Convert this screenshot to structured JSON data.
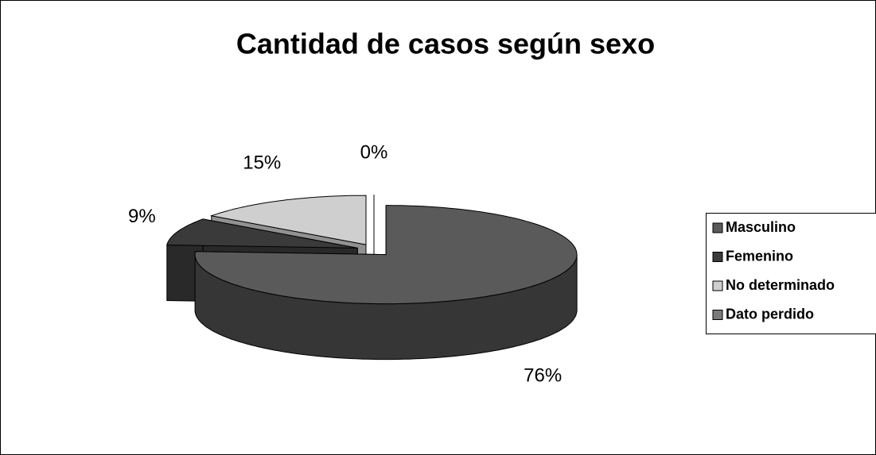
{
  "chart_data": {
    "type": "pie3d",
    "title": "Cantidad de casos según sexo",
    "categories": [
      "Masculino",
      "Femenino",
      "No determinado",
      "Dato perdido"
    ],
    "values": [
      76,
      9,
      15,
      0
    ],
    "value_labels": [
      "76%",
      "9%",
      "15%",
      "0%"
    ],
    "colors": [
      "#5a5a5a",
      "#3a3a3a",
      "#cfcfcf",
      "#7a7a7a"
    ],
    "legend": "right"
  }
}
